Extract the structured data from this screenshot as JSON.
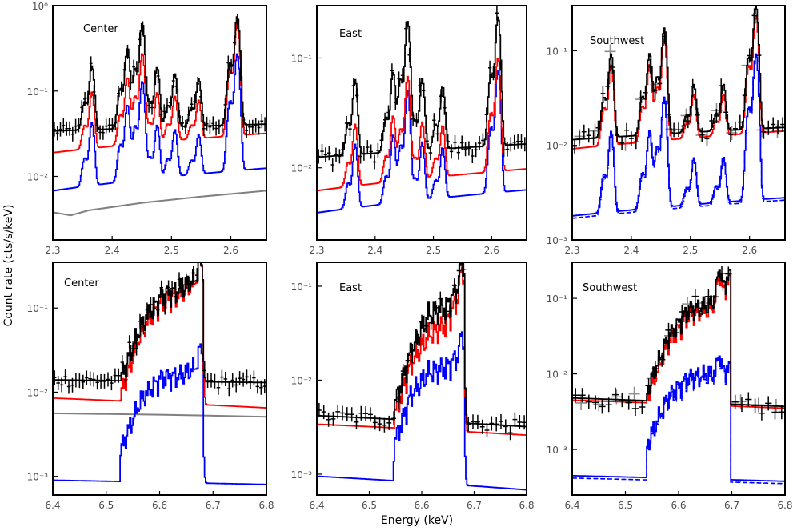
{
  "figure": {
    "ylabel": "Count rate (cts/s/keV)",
    "xlabel": "Energy (keV)"
  },
  "chart_data": [
    {
      "type": "line",
      "label": "Center",
      "log_y": true,
      "xlim": [
        2.3,
        2.66
      ],
      "ylim": [
        0.0018,
        1.0
      ],
      "x_ticks": [
        2.3,
        2.4,
        2.5,
        2.6
      ],
      "x_tick_labels": [
        "2.3",
        "2.4",
        "2.5",
        "2.6"
      ],
      "y_ticks": [
        0.01,
        0.1,
        1
      ],
      "y_tick_labels": [
        "10⁻²",
        "10⁻¹",
        "10⁰"
      ],
      "continuum": {
        "black": [
          0.034,
          0.041
        ],
        "red": [
          0.019,
          0.032
        ],
        "blue": [
          0.0068,
          0.0125
        ]
      },
      "lines": [
        {
          "e": 2.365,
          "black": 0.16,
          "red": 0.075,
          "blue": 0.035
        },
        {
          "e": 2.425,
          "black": 0.28,
          "red": 0.12,
          "blue": 0.06
        },
        {
          "e": 2.45,
          "black": 0.58,
          "red": 0.25,
          "blue": 0.12
        },
        {
          "e": 2.475,
          "black": 0.15,
          "red": 0.07,
          "blue": 0.03
        },
        {
          "e": 2.505,
          "black": 0.12,
          "red": 0.06,
          "blue": 0.025
        },
        {
          "e": 2.545,
          "black": 0.1,
          "red": 0.05,
          "blue": 0.02
        },
        {
          "e": 2.61,
          "black": 0.7,
          "red": 0.58,
          "blue": 0.26
        }
      ],
      "gray_curve": [
        [
          2.3,
          0.0038
        ],
        [
          2.33,
          0.0035
        ],
        [
          2.36,
          0.004
        ],
        [
          2.45,
          0.0049
        ],
        [
          2.55,
          0.0058
        ],
        [
          2.66,
          0.0068
        ]
      ],
      "data_points": {
        "n": 70,
        "base": 0.04,
        "scatter": 0.3
      },
      "gray_points": {
        "n": 0
      }
    },
    {
      "type": "line",
      "label": "East",
      "log_y": true,
      "xlim": [
        2.3,
        2.66
      ],
      "ylim": [
        0.0022,
        0.3
      ],
      "x_ticks": [
        2.3,
        2.4,
        2.5,
        2.6
      ],
      "x_tick_labels": [
        "2.3",
        "2.4",
        "2.5",
        "2.6"
      ],
      "y_ticks": [
        0.01,
        0.1
      ],
      "y_tick_labels": [
        "10⁻²",
        "10⁻¹"
      ],
      "continuum": {
        "black": [
          0.0125,
          0.0165
        ],
        "red": [
          0.0062,
          0.0098
        ],
        "blue": [
          0.0039,
          0.0063
        ]
      },
      "lines": [
        {
          "e": 2.365,
          "black": 0.05,
          "red": 0.018,
          "blue": 0.012
        },
        {
          "e": 2.43,
          "black": 0.06,
          "red": 0.022,
          "blue": 0.015
        },
        {
          "e": 2.455,
          "black": 0.2,
          "red": 0.06,
          "blue": 0.045
        },
        {
          "e": 2.48,
          "black": 0.05,
          "red": 0.018,
          "blue": 0.012
        },
        {
          "e": 2.515,
          "black": 0.04,
          "red": 0.016,
          "blue": 0.01
        },
        {
          "e": 2.61,
          "black": 0.22,
          "red": 0.09,
          "blue": 0.07
        }
      ],
      "gray_curve": [],
      "data_points": {
        "n": 60,
        "base": 0.016,
        "scatter": 0.35
      },
      "gray_points": {
        "n": 0
      }
    },
    {
      "type": "line",
      "label": "Southwest",
      "log_y": true,
      "xlim": [
        2.3,
        2.66
      ],
      "ylim": [
        0.001,
        0.3
      ],
      "x_ticks": [
        2.3,
        2.4,
        2.5,
        2.6
      ],
      "x_tick_labels": [
        "2.3",
        "2.4",
        "2.5",
        "2.6"
      ],
      "y_ticks": [
        0.001,
        0.01,
        0.1
      ],
      "y_tick_labels": [
        "10⁻³",
        "10⁻²",
        "10⁻¹"
      ],
      "continuum": {
        "black": [
          0.0115,
          0.0155
        ],
        "red": [
          0.0092,
          0.0142
        ],
        "blue": [
          0.0018,
          0.0028
        ]
      },
      "lines": [
        {
          "e": 2.365,
          "black": 0.08,
          "red": 0.06,
          "blue": 0.012
        },
        {
          "e": 2.43,
          "black": 0.08,
          "red": 0.06,
          "blue": 0.012
        },
        {
          "e": 2.455,
          "black": 0.16,
          "red": 0.12,
          "blue": 0.03
        },
        {
          "e": 2.505,
          "black": 0.03,
          "red": 0.022,
          "blue": 0.005
        },
        {
          "e": 2.555,
          "black": 0.03,
          "red": 0.022,
          "blue": 0.005
        },
        {
          "e": 2.61,
          "black": 0.28,
          "red": 0.22,
          "blue": 0.09
        }
      ],
      "gray_curve": [],
      "data_points": {
        "n": 45,
        "base": 0.014,
        "scatter": 0.4
      },
      "gray_points": {
        "n": 14,
        "base": 0.016,
        "scatter": 0.45
      },
      "dashed_blue": true
    },
    {
      "type": "line",
      "label": "Center",
      "log_y": true,
      "xlim": [
        6.4,
        6.8
      ],
      "ylim": [
        0.0006,
        0.35
      ],
      "x_ticks": [
        6.4,
        6.5,
        6.6,
        6.7,
        6.8
      ],
      "x_tick_labels": [
        "6.4",
        "6.5",
        "6.6",
        "6.7",
        "6.8"
      ],
      "y_ticks": [
        0.001,
        0.01,
        0.1
      ],
      "y_tick_labels": [
        "10⁻³",
        "10⁻²",
        "10⁻¹"
      ],
      "continuum": {
        "black": [
          0.014,
          0.013
        ],
        "red": [
          0.0085,
          0.0065
        ],
        "blue": [
          0.0009,
          0.0008
        ]
      },
      "blend": {
        "start": 6.525,
        "end": 6.678,
        "peak_e": 6.675,
        "black": [
          0.014,
          0.06,
          0.14,
          0.17,
          0.25
        ],
        "red": [
          0.009,
          0.05,
          0.12,
          0.15,
          0.24
        ],
        "blue": [
          0.002,
          0.008,
          0.015,
          0.016,
          0.022
        ]
      },
      "gray_curve": [
        [
          6.4,
          0.0056
        ],
        [
          6.6,
          0.0054
        ],
        [
          6.8,
          0.0051
        ]
      ],
      "data_points": {
        "n": 60,
        "base": 0.015,
        "scatter": 0.35
      },
      "gray_points": {
        "n": 0
      }
    },
    {
      "type": "line",
      "label": "East",
      "log_y": true,
      "xlim": [
        6.4,
        6.8
      ],
      "ylim": [
        0.0006,
        0.18
      ],
      "x_ticks": [
        6.4,
        6.5,
        6.6,
        6.7,
        6.8
      ],
      "x_tick_labels": [
        "6.4",
        "6.5",
        "6.6",
        "6.7",
        "6.8"
      ],
      "y_ticks": [
        0.001,
        0.01,
        0.1
      ],
      "y_tick_labels": [
        "10⁻³",
        "10⁻²",
        "10⁻¹"
      ],
      "continuum": {
        "black": [
          0.0042,
          0.0032
        ],
        "red": [
          0.0034,
          0.0026
        ],
        "blue": [
          0.00095,
          0.00068
        ]
      },
      "blend": {
        "start": 6.545,
        "end": 6.678,
        "peak_e": 6.675,
        "black": [
          0.005,
          0.02,
          0.05,
          0.06,
          0.12
        ],
        "red": [
          0.004,
          0.015,
          0.03,
          0.04,
          0.1
        ],
        "blue": [
          0.002,
          0.007,
          0.012,
          0.014,
          0.02
        ]
      },
      "gray_curve": [],
      "data_points": {
        "n": 45,
        "base": 0.005,
        "scatter": 0.35
      },
      "gray_points": {
        "n": 0
      }
    },
    {
      "type": "line",
      "label": "Southwest",
      "log_y": true,
      "xlim": [
        6.4,
        6.8
      ],
      "ylim": [
        0.00025,
        0.3
      ],
      "x_ticks": [
        6.4,
        6.5,
        6.6,
        6.7,
        6.8
      ],
      "x_tick_labels": [
        "6.4",
        "6.5",
        "6.6",
        "6.7",
        "6.8"
      ],
      "y_ticks": [
        0.001,
        0.01,
        0.1
      ],
      "y_tick_labels": [
        "10⁻³",
        "10⁻²",
        "10⁻¹"
      ],
      "continuum": {
        "black": [
          0.0048,
          0.0037
        ],
        "red": [
          0.0045,
          0.0035
        ],
        "blue": [
          0.00045,
          0.00038
        ]
      },
      "blend": {
        "start": 6.54,
        "end": 6.695,
        "peak_e": 6.675,
        "black": [
          0.006,
          0.03,
          0.07,
          0.08,
          0.2
        ],
        "red": [
          0.005,
          0.025,
          0.06,
          0.07,
          0.17
        ],
        "blue": [
          0.0012,
          0.005,
          0.009,
          0.01,
          0.012
        ]
      },
      "gray_curve": [],
      "data_points": {
        "n": 32,
        "base": 0.006,
        "scatter": 0.45
      },
      "gray_points": {
        "n": 12,
        "base": 0.006,
        "scatter": 0.5
      },
      "dashed_blue": true
    }
  ]
}
